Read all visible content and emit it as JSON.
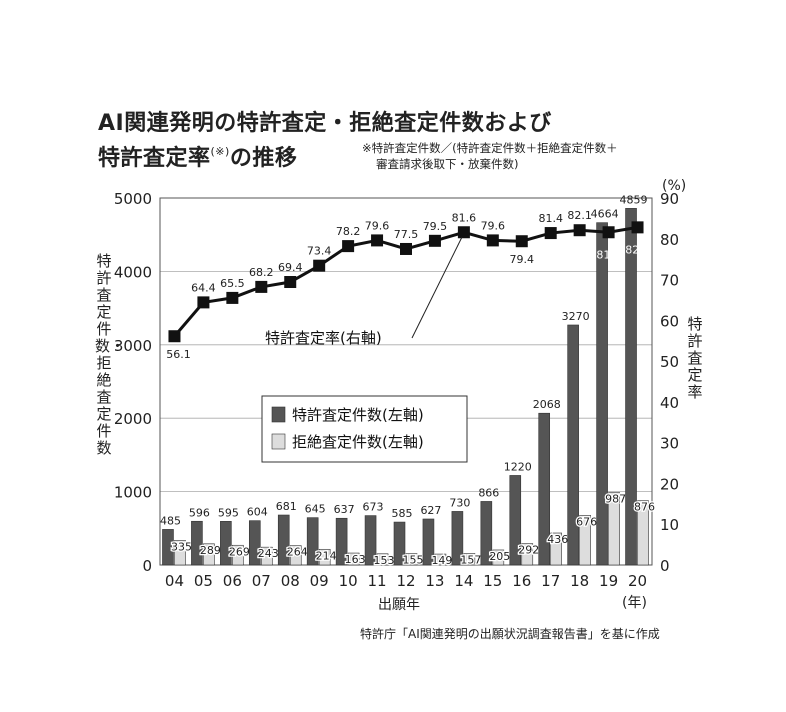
{
  "title_line1": "AI関連発明の特許査定・拒絶査定件数および",
  "title_line2": "特許査定率",
  "title_note_mark": "(※)",
  "title_line2_suffix": "の推移",
  "footnote": {
    "line1": "※特許査定件数／(特許査定件数＋拒絶査定件数＋",
    "line2": "審査請求後取下・放棄件数)"
  },
  "source": "特許庁「AI関連発明の出願状況調査報告書」を基に作成",
  "chart_data": {
    "type": "bar",
    "categories": [
      "04",
      "05",
      "06",
      "07",
      "08",
      "09",
      "10",
      "11",
      "12",
      "13",
      "14",
      "15",
      "16",
      "17",
      "18",
      "19",
      "20"
    ],
    "series": [
      {
        "name": "特許査定件数(左軸)",
        "axis": "left",
        "color": "#555555",
        "values": [
          485,
          596,
          595,
          604,
          681,
          645,
          637,
          673,
          585,
          627,
          730,
          866,
          1220,
          2068,
          3270,
          4664,
          4859
        ]
      },
      {
        "name": "拒絶査定件数(左軸)",
        "axis": "left",
        "color": "#dddddd",
        "values": [
          335,
          289,
          269,
          243,
          264,
          214,
          163,
          153,
          155,
          149,
          157,
          205,
          292,
          436,
          676,
          987,
          876
        ]
      },
      {
        "name": "特許査定率(右軸)",
        "type": "line",
        "axis": "right",
        "color": "#111111",
        "values": [
          56.1,
          64.4,
          65.5,
          68.2,
          69.4,
          73.4,
          78.2,
          79.6,
          77.5,
          79.5,
          81.6,
          79.6,
          79.4,
          81.4,
          82.1,
          81.6,
          82.8
        ]
      }
    ],
    "line_label": "特許査定率(右軸)",
    "xlabel": "出願年",
    "x_unit": "(年)",
    "ylabel_left": "特許査定件数・拒絶査定件数",
    "ylabel_right": "特許査定率",
    "y_unit_right": "(%)",
    "ylim_left": [
      0,
      5000
    ],
    "ylim_right": [
      0,
      90
    ],
    "yticks_left": [
      "0",
      "1000",
      "2000",
      "3000",
      "4000",
      "5000"
    ],
    "yticks_right": [
      "0",
      "10",
      "20",
      "30",
      "40",
      "50",
      "60",
      "70",
      "80",
      "90"
    ],
    "grid": true,
    "legend_position": "center"
  }
}
